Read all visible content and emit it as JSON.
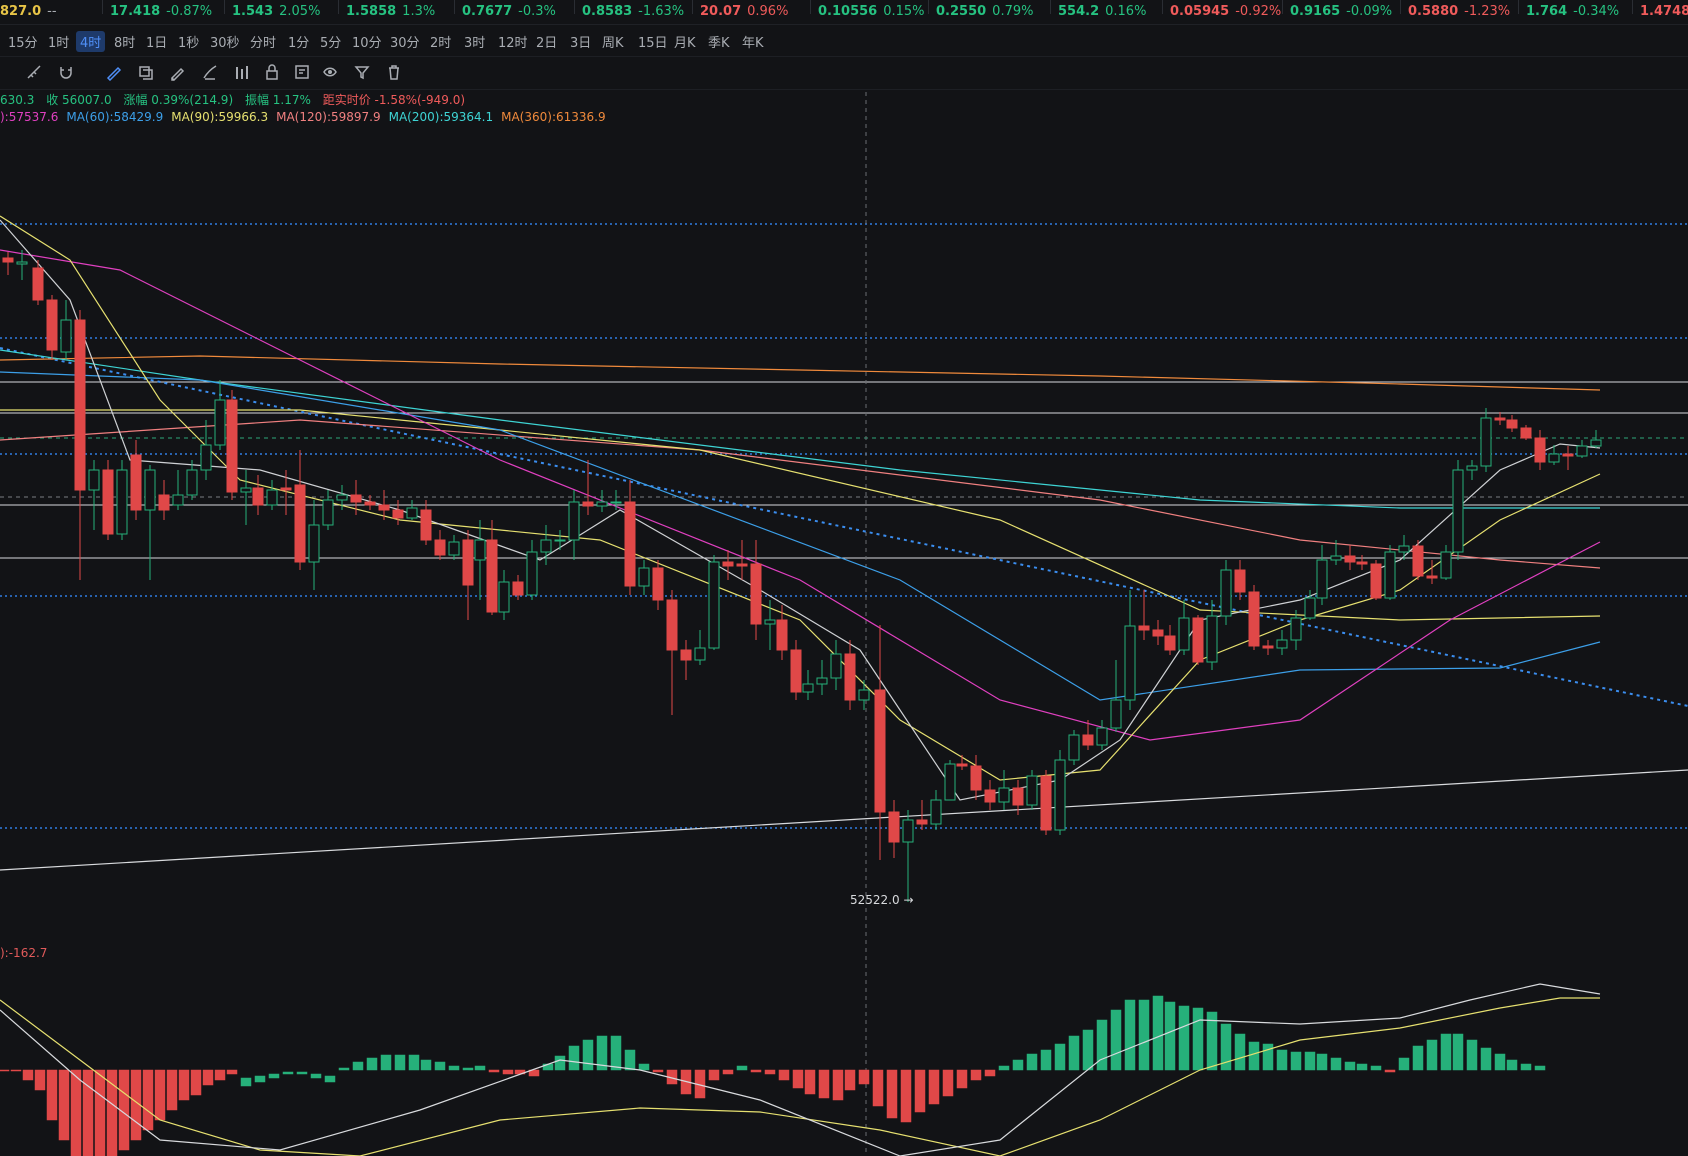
{
  "ticker": [
    {
      "price": "827.0",
      "change": "--",
      "color": "#e8c547",
      "chgcolor": "#a9adb3"
    },
    {
      "price": "17.418",
      "change": "-0.87%",
      "color": "#26c281",
      "chgcolor": "#26c281"
    },
    {
      "price": "1.543",
      "change": "2.05%",
      "color": "#26c281",
      "chgcolor": "#26c281"
    },
    {
      "price": "1.5858",
      "change": "1.3%",
      "color": "#26c281",
      "chgcolor": "#26c281"
    },
    {
      "price": "0.7677",
      "change": "-0.3%",
      "color": "#26c281",
      "chgcolor": "#26c281"
    },
    {
      "price": "0.8583",
      "change": "-1.63%",
      "color": "#26c281",
      "chgcolor": "#26c281"
    },
    {
      "price": "20.07",
      "change": "0.96%",
      "color": "#f05b5b",
      "chgcolor": "#f05b5b"
    },
    {
      "price": "0.10556",
      "change": "0.15%",
      "color": "#26c281",
      "chgcolor": "#26c281"
    },
    {
      "price": "0.2550",
      "change": "0.79%",
      "color": "#26c281",
      "chgcolor": "#26c281"
    },
    {
      "price": "554.2",
      "change": "0.16%",
      "color": "#26c281",
      "chgcolor": "#26c281"
    },
    {
      "price": "0.05945",
      "change": "-0.92%",
      "color": "#f05b5b",
      "chgcolor": "#f05b5b"
    },
    {
      "price": "0.9165",
      "change": "-0.09%",
      "color": "#26c281",
      "chgcolor": "#26c281"
    },
    {
      "price": "0.5880",
      "change": "-1.23%",
      "color": "#f05b5b",
      "chgcolor": "#f05b5b"
    },
    {
      "price": "1.764",
      "change": "-0.34%",
      "color": "#26c281",
      "chgcolor": "#26c281"
    },
    {
      "price": "1.4748",
      "change": "",
      "color": "#f05b5b",
      "chgcolor": "#f05b5b"
    }
  ],
  "intervals": [
    "15分",
    "1时",
    "4时",
    "8时",
    "1日",
    "1秒",
    "30秒",
    "分时",
    "1分",
    "5分",
    "10分",
    "30分",
    "2时",
    "3时",
    "12时",
    "2日",
    "3日",
    "周K",
    "15日",
    "月K",
    "季K",
    "年K"
  ],
  "active_interval": "4时",
  "toolbar_icons": [
    "ruler-icon",
    "magnet-icon",
    "brush-icon",
    "layers-icon",
    "pencil-icon",
    "pen-icon",
    "bars-icon",
    "lock-icon",
    "note-icon",
    "eye-icon",
    "filter-icon",
    "trash-icon"
  ],
  "ohlc_line": {
    "partial_open": "630.3",
    "close": "收 56007.0",
    "change": "涨幅 0.39%(214.9)",
    "amplitude": "振幅 1.17%",
    "distance": "距实时价 -1.58%(-949.0)"
  },
  "ma_line": [
    {
      "text": "):57537.6",
      "color": "#e040c0"
    },
    {
      "text": "MA(60):58429.9",
      "color": "#3c9fe8"
    },
    {
      "text": "MA(90):59966.3",
      "color": "#e6e070"
    },
    {
      "text": "MA(120):59897.9",
      "color": "#f08080"
    },
    {
      "text": "MA(200):59364.1",
      "color": "#3ed4d4"
    },
    {
      "text": "MA(360):61336.9",
      "color": "#f08a3c"
    }
  ],
  "low_marker": "52522.0 →",
  "macd_label": "):-162.7",
  "colors": {
    "up": "#26b07a",
    "down": "#e04848",
    "bg": "#121316",
    "accent": "#4f8ff7"
  },
  "chart_data": {
    "type": "candlestick",
    "lowest_price": 52522.0,
    "current_close": 56007.0
  }
}
